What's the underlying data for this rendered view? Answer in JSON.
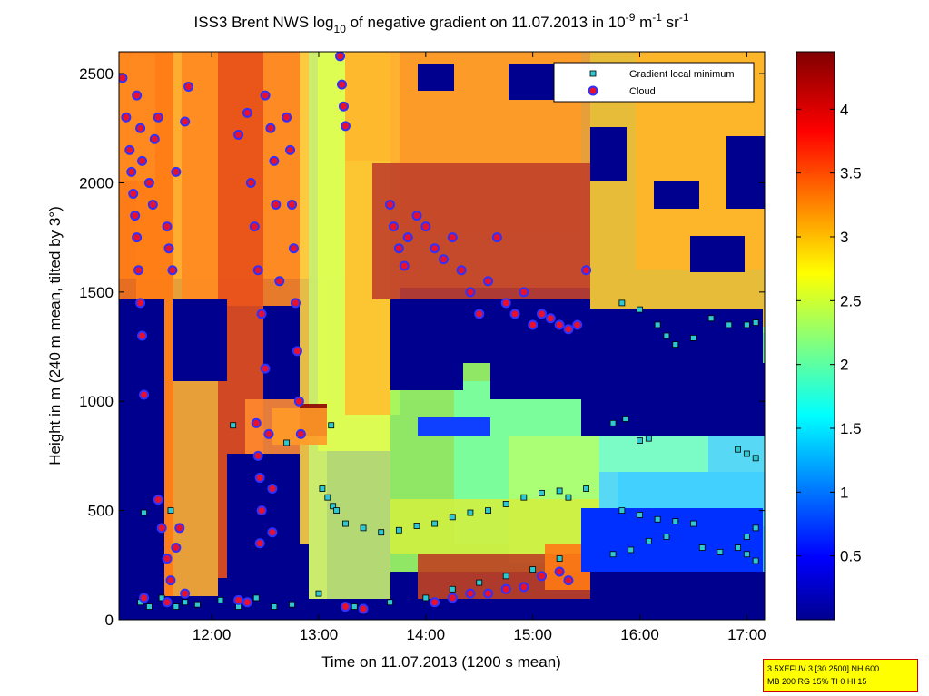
{
  "chart_data": {
    "type": "heatmap",
    "title": {
      "prefix": "ISS3 Brent NWS log",
      "log_base": "10",
      "middle": " of negative gradient on 11.07.2013 in 10",
      "exp1": "-9",
      "unit1": " m",
      "exp2": "-1",
      "unit2": " sr",
      "exp3": "-1"
    },
    "xlabel": "Time on 11.07.2013 (1200 s mean)",
    "ylabel": "Height in m (240 m mean, tilted by 3°)",
    "xlim": [
      "11:08",
      "17:10"
    ],
    "ylim": [
      0,
      2600
    ],
    "x_ticks": [
      "12:00",
      "13:00",
      "14:00",
      "15:00",
      "16:00",
      "17:00"
    ],
    "y_ticks": [
      "0",
      "500",
      "1000",
      "1500",
      "2000",
      "2500"
    ],
    "colorbar": {
      "colormap": "jet",
      "range": [
        0,
        4.45
      ],
      "ticks": [
        "0.5",
        "1",
        "1.5",
        "2",
        "2.5",
        "3",
        "3.5",
        "4"
      ]
    },
    "legend": {
      "position": "top-right",
      "entries": [
        {
          "label": "Gradient local minimum",
          "marker": "square",
          "color": "#2ec8d2"
        },
        {
          "label": "Cloud",
          "marker": "circle",
          "color": "#e8102a"
        }
      ]
    },
    "series": [
      {
        "name": "Gradient local minimum",
        "points": [
          [
            "11:20",
            80
          ],
          [
            "11:25",
            60
          ],
          [
            "11:32",
            100
          ],
          [
            "11:40",
            60
          ],
          [
            "11:45",
            80
          ],
          [
            "11:52",
            70
          ],
          [
            "12:05",
            90
          ],
          [
            "12:15",
            60
          ],
          [
            "12:25",
            100
          ],
          [
            "12:35",
            60
          ],
          [
            "12:45",
            70
          ],
          [
            "13:02",
            600
          ],
          [
            "13:05",
            560
          ],
          [
            "13:08",
            520
          ],
          [
            "13:10",
            500
          ],
          [
            "13:15",
            440
          ],
          [
            "13:25",
            420
          ],
          [
            "13:35",
            400
          ],
          [
            "13:45",
            410
          ],
          [
            "13:55",
            430
          ],
          [
            "14:05",
            440
          ],
          [
            "14:15",
            470
          ],
          [
            "14:25",
            490
          ],
          [
            "14:35",
            500
          ],
          [
            "14:45",
            530
          ],
          [
            "14:55",
            560
          ],
          [
            "15:05",
            580
          ],
          [
            "15:15",
            590
          ],
          [
            "15:20",
            560
          ],
          [
            "15:30",
            600
          ],
          [
            "15:45",
            900
          ],
          [
            "15:52",
            920
          ],
          [
            "15:50",
            500
          ],
          [
            "16:00",
            480
          ],
          [
            "16:10",
            460
          ],
          [
            "16:20",
            450
          ],
          [
            "16:30",
            440
          ],
          [
            "16:00",
            820
          ],
          [
            "16:05",
            830
          ],
          [
            "15:50",
            1450
          ],
          [
            "16:00",
            1420
          ],
          [
            "16:10",
            1350
          ],
          [
            "16:15",
            1300
          ],
          [
            "16:20",
            1260
          ],
          [
            "16:30",
            1290
          ],
          [
            "16:40",
            1380
          ],
          [
            "16:50",
            1350
          ],
          [
            "17:00",
            1350
          ],
          [
            "17:05",
            1360
          ],
          [
            "16:35",
            330
          ],
          [
            "16:45",
            310
          ],
          [
            "16:55",
            330
          ],
          [
            "17:00",
            300
          ],
          [
            "17:05",
            270
          ],
          [
            "17:00",
            380
          ],
          [
            "17:05",
            420
          ],
          [
            "16:55",
            780
          ],
          [
            "17:00",
            760
          ],
          [
            "17:05",
            740
          ],
          [
            "15:45",
            300
          ],
          [
            "15:55",
            320
          ],
          [
            "16:05",
            360
          ],
          [
            "16:15",
            380
          ],
          [
            "14:00",
            100
          ],
          [
            "14:15",
            140
          ],
          [
            "14:30",
            170
          ],
          [
            "14:45",
            200
          ],
          [
            "15:00",
            230
          ],
          [
            "15:15",
            280
          ],
          [
            "13:00",
            120
          ],
          [
            "13:20",
            60
          ],
          [
            "13:40",
            80
          ],
          [
            "12:12",
            890
          ],
          [
            "12:42",
            810
          ],
          [
            "13:07",
            890
          ],
          [
            "11:22",
            490
          ],
          [
            "11:37",
            500
          ]
        ]
      },
      {
        "name": "Cloud",
        "points": [
          [
            "11:10",
            2480
          ],
          [
            "11:12",
            2300
          ],
          [
            "11:14",
            2150
          ],
          [
            "11:15",
            2050
          ],
          [
            "11:16",
            1950
          ],
          [
            "11:17",
            1850
          ],
          [
            "11:18",
            1750
          ],
          [
            "11:19",
            1600
          ],
          [
            "11:20",
            1450
          ],
          [
            "11:21",
            1300
          ],
          [
            "11:22",
            1030
          ],
          [
            "11:18",
            2400
          ],
          [
            "11:20",
            2250
          ],
          [
            "11:21",
            2100
          ],
          [
            "11:25",
            2000
          ],
          [
            "11:27",
            1900
          ],
          [
            "11:28",
            2200
          ],
          [
            "11:30",
            2300
          ],
          [
            "11:35",
            1800
          ],
          [
            "11:36",
            1700
          ],
          [
            "11:38",
            1600
          ],
          [
            "11:40",
            2050
          ],
          [
            "11:45",
            2280
          ],
          [
            "11:47",
            2440
          ],
          [
            "11:30",
            550
          ],
          [
            "11:32",
            420
          ],
          [
            "11:35",
            280
          ],
          [
            "11:37",
            180
          ],
          [
            "11:40",
            330
          ],
          [
            "11:42",
            420
          ],
          [
            "11:45",
            120
          ],
          [
            "12:15",
            2220
          ],
          [
            "12:20",
            2320
          ],
          [
            "12:22",
            2000
          ],
          [
            "12:24",
            1800
          ],
          [
            "12:26",
            1600
          ],
          [
            "12:28",
            1400
          ],
          [
            "12:30",
            1150
          ],
          [
            "12:25",
            900
          ],
          [
            "12:26",
            750
          ],
          [
            "12:27",
            650
          ],
          [
            "12:28",
            500
          ],
          [
            "12:27",
            350
          ],
          [
            "12:30",
            2400
          ],
          [
            "12:33",
            2250
          ],
          [
            "12:35",
            2100
          ],
          [
            "12:36",
            1900
          ],
          [
            "12:38",
            1550
          ],
          [
            "12:32",
            850
          ],
          [
            "12:34",
            600
          ],
          [
            "12:34",
            400
          ],
          [
            "12:42",
            2300
          ],
          [
            "12:44",
            2150
          ],
          [
            "12:45",
            1900
          ],
          [
            "12:46",
            1700
          ],
          [
            "12:47",
            1450
          ],
          [
            "12:48",
            1230
          ],
          [
            "12:49",
            1000
          ],
          [
            "12:50",
            850
          ],
          [
            "13:12",
            2580
          ],
          [
            "13:13",
            2450
          ],
          [
            "13:14",
            2350
          ],
          [
            "13:15",
            2260
          ],
          [
            "13:40",
            1900
          ],
          [
            "13:42",
            1800
          ],
          [
            "13:45",
            1700
          ],
          [
            "13:48",
            1620
          ],
          [
            "13:50",
            1750
          ],
          [
            "13:55",
            1850
          ],
          [
            "14:00",
            1800
          ],
          [
            "14:05",
            1700
          ],
          [
            "14:10",
            1650
          ],
          [
            "14:15",
            1750
          ],
          [
            "14:20",
            1600
          ],
          [
            "14:25",
            1500
          ],
          [
            "14:30",
            1400
          ],
          [
            "14:35",
            1550
          ],
          [
            "14:40",
            1750
          ],
          [
            "14:45",
            1450
          ],
          [
            "14:50",
            1400
          ],
          [
            "14:55",
            1500
          ],
          [
            "15:00",
            1350
          ],
          [
            "15:05",
            1400
          ],
          [
            "15:10",
            1380
          ],
          [
            "15:15",
            1350
          ],
          [
            "15:20",
            1330
          ],
          [
            "15:25",
            1350
          ],
          [
            "15:30",
            1600
          ],
          [
            "14:05",
            80
          ],
          [
            "14:15",
            100
          ],
          [
            "14:25",
            120
          ],
          [
            "14:35",
            120
          ],
          [
            "14:45",
            140
          ],
          [
            "14:55",
            150
          ],
          [
            "15:05",
            200
          ],
          [
            "15:15",
            220
          ],
          [
            "15:20",
            180
          ],
          [
            "13:15",
            60
          ],
          [
            "13:25",
            50
          ],
          [
            "11:22",
            100
          ],
          [
            "11:35",
            80
          ],
          [
            "12:15",
            90
          ],
          [
            "12:20",
            80
          ]
        ]
      }
    ]
  },
  "info_box": {
    "line1": "3.5XEFUV 3 [30 2500] NH 600",
    "line2": "MB 200 RG 15% TI 0 HI 15"
  }
}
